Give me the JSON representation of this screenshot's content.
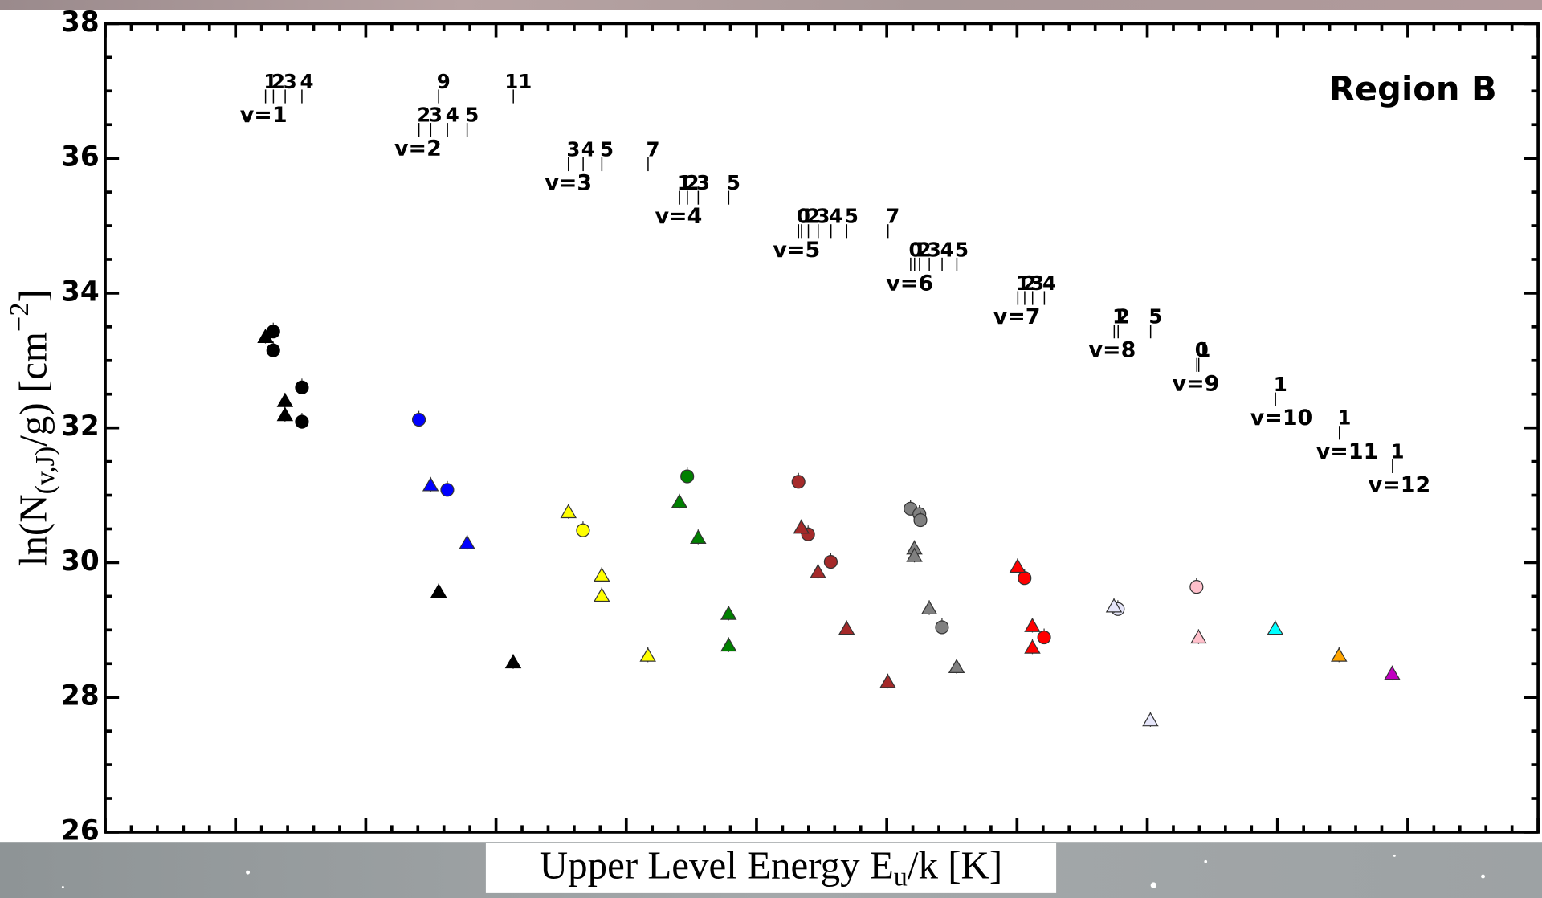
{
  "chart_data": {
    "type": "scatter",
    "title": "Region B",
    "xlabel": {
      "main": "Upper Level Energy E",
      "sub": "u",
      "rest": "/k [K]"
    },
    "ylabel": {
      "main": "ln(N",
      "sub": "(v,J)",
      "rest": "/g) [cm",
      "sup": "−2",
      "end": "]"
    },
    "xlim": [
      0,
      55000
    ],
    "xticks": [
      0,
      5000,
      10000,
      15000,
      20000,
      25000,
      30000,
      35000,
      40000,
      45000,
      50000,
      55000
    ],
    "ylim": [
      26,
      38
    ],
    "yticks": [
      26,
      28,
      30,
      32,
      34,
      36,
      38
    ],
    "series": [
      {
        "color": "#000000",
        "marker": "circle",
        "x": [
          6450,
          6450,
          7550,
          7550
        ],
        "y": [
          33.43,
          33.15,
          32.6,
          32.09
        ]
      },
      {
        "color": "#000000",
        "marker": "triangle",
        "x": [
          6150,
          6900,
          6900,
          12800,
          15660
        ],
        "y": [
          33.34,
          32.39,
          32.18,
          29.56,
          28.51
        ]
      },
      {
        "color": "#0000ff",
        "marker": "circle",
        "x": [
          12040,
          13130
        ],
        "y": [
          32.12,
          31.08
        ]
      },
      {
        "color": "#0000ff",
        "marker": "triangle",
        "x": [
          12490,
          13890
        ],
        "y": [
          31.14,
          30.28
        ]
      },
      {
        "color": "#ffff00",
        "marker": "circle",
        "x": [
          18340
        ],
        "y": [
          30.48
        ]
      },
      {
        "color": "#ffff00",
        "marker": "triangle",
        "x": [
          17780,
          19060,
          19060,
          20830
        ],
        "y": [
          30.74,
          29.8,
          29.5,
          28.61
        ]
      },
      {
        "color": "#008000",
        "marker": "circle",
        "x": [
          22340
        ],
        "y": [
          31.28
        ]
      },
      {
        "color": "#008000",
        "marker": "triangle",
        "x": [
          22040,
          22760,
          23930,
          23930
        ],
        "y": [
          30.89,
          30.36,
          29.23,
          28.76
        ]
      },
      {
        "color": "#a52a2a",
        "marker": "circle",
        "x": [
          26610,
          26980,
          27850
        ],
        "y": [
          31.2,
          30.42,
          30.01
        ]
      },
      {
        "color": "#a52a2a",
        "marker": "triangle",
        "x": [
          26720,
          27360,
          28460,
          30040
        ],
        "y": [
          30.51,
          29.85,
          29.01,
          28.22
        ]
      },
      {
        "color": "#808080",
        "marker": "circle",
        "x": [
          30910,
          31250,
          31290,
          32120
        ],
        "y": [
          30.8,
          30.72,
          30.63,
          29.04
        ]
      },
      {
        "color": "#808080",
        "marker": "triangle",
        "x": [
          31060,
          31060,
          31630,
          32680
        ],
        "y": [
          30.2,
          30.09,
          29.31,
          28.44
        ]
      },
      {
        "color": "#ff0000",
        "marker": "circle",
        "x": [
          35290,
          36040
        ],
        "y": [
          29.77,
          28.89
        ]
      },
      {
        "color": "#ff0000",
        "marker": "triangle",
        "x": [
          35020,
          35590,
          35590
        ],
        "y": [
          29.93,
          29.05,
          28.73
        ]
      },
      {
        "color": "#e6e6fa",
        "marker": "circle",
        "x": [
          38870
        ],
        "y": [
          29.31
        ]
      },
      {
        "color": "#e6e6fa",
        "marker": "triangle",
        "x": [
          38720,
          40120
        ],
        "y": [
          29.34,
          27.65
        ]
      },
      {
        "color": "#ffc0cb",
        "marker": "circle",
        "x": [
          41890
        ],
        "y": [
          29.64
        ]
      },
      {
        "color": "#ffc0cb",
        "marker": "triangle",
        "x": [
          41970
        ],
        "y": [
          28.88
        ]
      },
      {
        "color": "#00ffff",
        "marker": "triangle",
        "x": [
          44910
        ],
        "y": [
          29.01
        ]
      },
      {
        "color": "#ffa500",
        "marker": "triangle",
        "x": [
          47360
        ],
        "y": [
          28.61
        ]
      },
      {
        "color": "#c000c0",
        "marker": "triangle",
        "x": [
          49400
        ],
        "y": [
          28.34
        ]
      }
    ],
    "level_labels": [
      {
        "v": "v=1",
        "j": [
          "1",
          "2",
          "3",
          "4",
          "9",
          "11"
        ]
      },
      {
        "v": "v=2",
        "j": [
          "2",
          "3",
          "4",
          "5"
        ]
      },
      {
        "v": "v=3",
        "j": [
          "3",
          "4",
          "5",
          "7"
        ]
      },
      {
        "v": "v=4",
        "j": [
          "1",
          "2",
          "3",
          "5"
        ]
      },
      {
        "v": "v=5",
        "j": [
          "0",
          "1",
          "2",
          "3",
          "4",
          "5",
          "7"
        ]
      },
      {
        "v": "v=6",
        "j": [
          "0",
          "1",
          "2",
          "3",
          "4",
          "5"
        ]
      },
      {
        "v": "v=7",
        "j": [
          "1",
          "2",
          "3",
          "4"
        ]
      },
      {
        "v": "v=8",
        "j": [
          "1",
          "2",
          "5"
        ]
      },
      {
        "v": "v=9",
        "j": [
          "0",
          "1"
        ]
      },
      {
        "v": "v=10",
        "j": [
          "1"
        ]
      },
      {
        "v": "v=11",
        "j": [
          "1"
        ]
      },
      {
        "v": "v=12",
        "j": [
          "1"
        ]
      }
    ]
  }
}
